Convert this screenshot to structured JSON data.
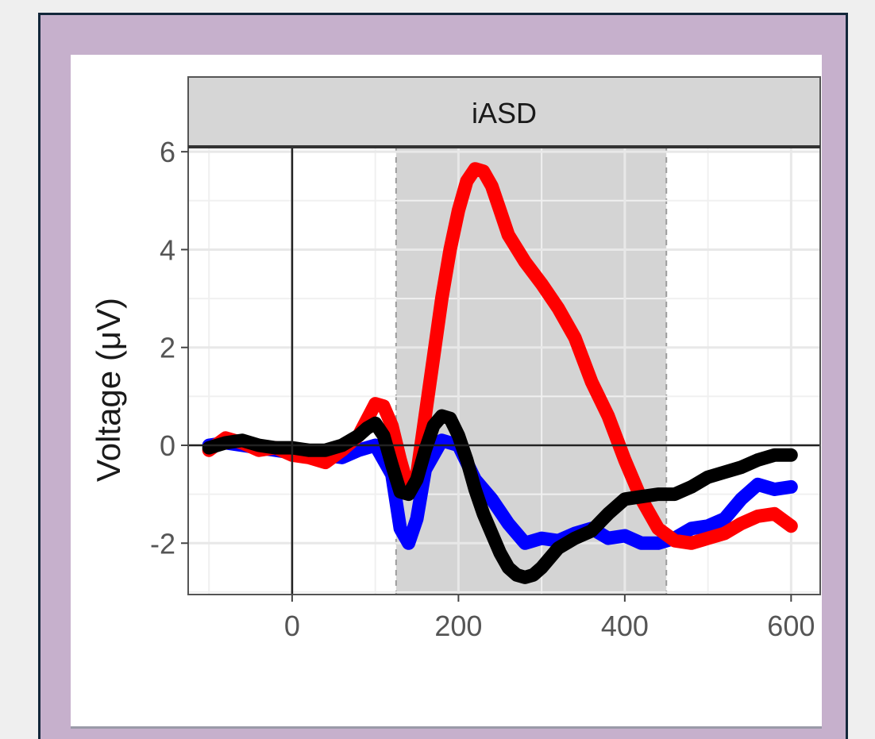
{
  "chart_data": {
    "type": "line",
    "facet_label": "iASD",
    "ylabel": "Voltage (μV)",
    "xlabel": "",
    "xlim": [
      -125,
      635
    ],
    "ylim": [
      -3.05,
      6.1
    ],
    "x_ticks": [
      0,
      200,
      400,
      600
    ],
    "y_ticks": [
      -2,
      0,
      2,
      4,
      6
    ],
    "grid": true,
    "legend": "none",
    "shaded_window": [
      125,
      450
    ],
    "colors": {
      "red": "#ff0000",
      "blue": "#0000ff",
      "black": "#000000",
      "shade": "#d4d4d4",
      "strip": "#d6d6d6"
    },
    "series": [
      {
        "color": "#ff0000",
        "x": [
          -100,
          -80,
          -60,
          -40,
          -20,
          0,
          20,
          40,
          60,
          80,
          100,
          110,
          120,
          130,
          140,
          150,
          160,
          170,
          180,
          190,
          200,
          210,
          220,
          230,
          240,
          250,
          260,
          280,
          300,
          320,
          340,
          360,
          380,
          400,
          420,
          440,
          460,
          480,
          500,
          520,
          540,
          560,
          580,
          600
        ],
        "y": [
          -0.1,
          0.15,
          0.05,
          -0.1,
          -0.05,
          -0.2,
          -0.25,
          -0.35,
          -0.1,
          0.2,
          0.85,
          0.8,
          0.4,
          -0.3,
          -0.9,
          -0.6,
          0.6,
          1.8,
          3.0,
          4.0,
          4.8,
          5.4,
          5.65,
          5.6,
          5.3,
          4.8,
          4.3,
          3.75,
          3.3,
          2.8,
          2.2,
          1.3,
          0.6,
          -0.3,
          -1.1,
          -1.7,
          -1.95,
          -2.0,
          -1.9,
          -1.8,
          -1.6,
          -1.45,
          -1.4,
          -1.65
        ]
      },
      {
        "color": "#0000ff",
        "x": [
          -100,
          -80,
          -60,
          -40,
          -20,
          0,
          20,
          40,
          60,
          80,
          100,
          120,
          130,
          140,
          150,
          160,
          180,
          200,
          220,
          240,
          260,
          280,
          300,
          320,
          340,
          360,
          380,
          400,
          420,
          440,
          460,
          480,
          500,
          520,
          540,
          560,
          580,
          600
        ],
        "y": [
          0.0,
          0.05,
          0.0,
          -0.05,
          -0.1,
          -0.15,
          -0.2,
          -0.2,
          -0.25,
          -0.1,
          0.0,
          -0.6,
          -1.7,
          -2.0,
          -1.5,
          -0.5,
          0.1,
          0.0,
          -0.7,
          -1.1,
          -1.6,
          -2.0,
          -1.9,
          -1.95,
          -1.8,
          -1.7,
          -1.9,
          -1.85,
          -2.0,
          -2.0,
          -1.9,
          -1.7,
          -1.65,
          -1.5,
          -1.1,
          -0.8,
          -0.9,
          -0.85
        ]
      },
      {
        "color": "#000000",
        "x": [
          -100,
          -80,
          -60,
          -40,
          -20,
          0,
          20,
          40,
          60,
          80,
          90,
          100,
          110,
          120,
          130,
          140,
          150,
          160,
          170,
          180,
          190,
          200,
          210,
          220,
          230,
          240,
          250,
          260,
          270,
          280,
          290,
          300,
          320,
          340,
          360,
          380,
          400,
          420,
          440,
          460,
          480,
          500,
          520,
          540,
          560,
          580,
          600
        ],
        "y": [
          -0.05,
          0.05,
          0.1,
          0.0,
          -0.05,
          -0.05,
          -0.1,
          -0.1,
          0.0,
          0.2,
          0.35,
          0.45,
          0.2,
          -0.4,
          -0.95,
          -1.0,
          -0.7,
          -0.1,
          0.4,
          0.6,
          0.55,
          0.2,
          -0.3,
          -0.9,
          -1.4,
          -1.8,
          -2.2,
          -2.5,
          -2.65,
          -2.7,
          -2.65,
          -2.5,
          -2.1,
          -1.9,
          -1.75,
          -1.4,
          -1.1,
          -1.05,
          -1.0,
          -1.0,
          -0.85,
          -0.65,
          -0.55,
          -0.45,
          -0.3,
          -0.2,
          -0.2
        ]
      }
    ]
  }
}
